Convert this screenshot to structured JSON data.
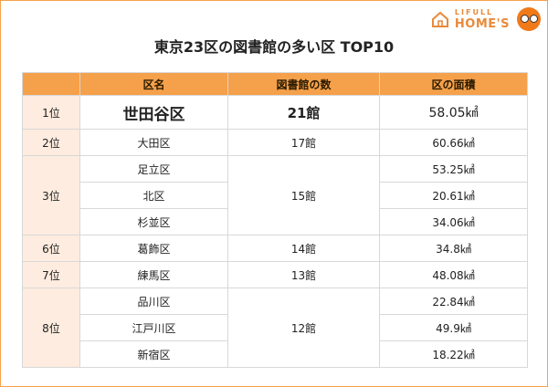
{
  "logo": {
    "top": "LIFULL",
    "bottom": "HOME'S"
  },
  "title": "東京23区の図書館の多い区 TOP10",
  "headers": {
    "rank": "",
    "ward": "区名",
    "libraries": "図書館の数",
    "area": "区の面積"
  },
  "rows": [
    {
      "rank": "1位",
      "ward": "世田谷区",
      "libraries": "21館",
      "area": "58.05㎢"
    },
    {
      "rank": "2位",
      "ward": "大田区",
      "libraries": "17館",
      "area": "60.66㎢"
    },
    {
      "rank": "3位",
      "ward": "足立区",
      "libraries": "15館",
      "area": "53.25㎢"
    },
    {
      "rank": "",
      "ward": "北区",
      "libraries": "",
      "area": "20.61㎢"
    },
    {
      "rank": "",
      "ward": "杉並区",
      "libraries": "",
      "area": "34.06㎢"
    },
    {
      "rank": "6位",
      "ward": "葛飾区",
      "libraries": "14館",
      "area": "34.8㎢"
    },
    {
      "rank": "7位",
      "ward": "練馬区",
      "libraries": "13館",
      "area": "48.08㎢"
    },
    {
      "rank": "8位",
      "ward": "品川区",
      "libraries": "12館",
      "area": "22.84㎢"
    },
    {
      "rank": "",
      "ward": "江戸川区",
      "libraries": "",
      "area": "49.9㎢"
    },
    {
      "rank": "",
      "ward": "新宿区",
      "libraries": "",
      "area": "18.22㎢"
    }
  ],
  "colors": {
    "accent": "#f5a04a",
    "rank_bg": "#fdecdf",
    "grid": "#d8d8d8",
    "brand": "#e98a3a"
  },
  "icons": {
    "logo": "house-logo-icon",
    "mascot": "mascot-icon"
  }
}
